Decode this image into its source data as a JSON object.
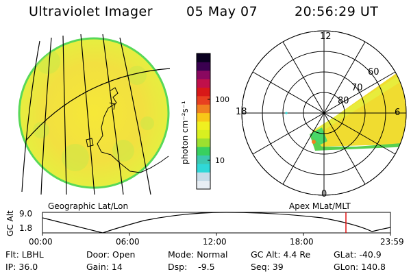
{
  "header": {
    "instrument": "Ultraviolet Imager",
    "date": "05 May 07",
    "time": "20:56:29 UT"
  },
  "geo_panel": {
    "caption": "Geographic Lat/Lon"
  },
  "colorbar": {
    "unit_label": "photon cm⁻²s⁻¹",
    "ticks": [
      "100",
      "10"
    ],
    "colors": [
      "#e8eef4",
      "#c8dce8",
      "#30d8d8",
      "#3cc8b0",
      "#38d060",
      "#9ce030",
      "#d8f020",
      "#f0f020",
      "#f8c818",
      "#f08020",
      "#e84020",
      "#d81818",
      "#c0104a",
      "#8a0860",
      "#3a0050",
      "#0a0020"
    ]
  },
  "polar_panel": {
    "caption": "Apex MLat/MLT",
    "mlt_labels": {
      "top": "12",
      "left": "18",
      "right": "6",
      "bottom": "0"
    },
    "lat_labels": [
      "60",
      "70",
      "80"
    ]
  },
  "timeline": {
    "y_label": "GC Alt",
    "y_ticks": [
      "9.0",
      "1.8"
    ],
    "x_ticks": [
      "00:00",
      "06:00",
      "12:00",
      "18:00",
      "23:59"
    ],
    "marker_color": "#e00000",
    "current_time": "20:56:29"
  },
  "info": {
    "rows": [
      [
        "Flt: LBHL",
        "Door: Open",
        "Mode: Normal",
        "GC Alt: 4.4 Re",
        "GLat: -40.9"
      ],
      [
        "IP: 36.0",
        "Gain: 14",
        "Dsp:    -9.5",
        "Seq: 39",
        "GLon: 140.8"
      ]
    ]
  }
}
